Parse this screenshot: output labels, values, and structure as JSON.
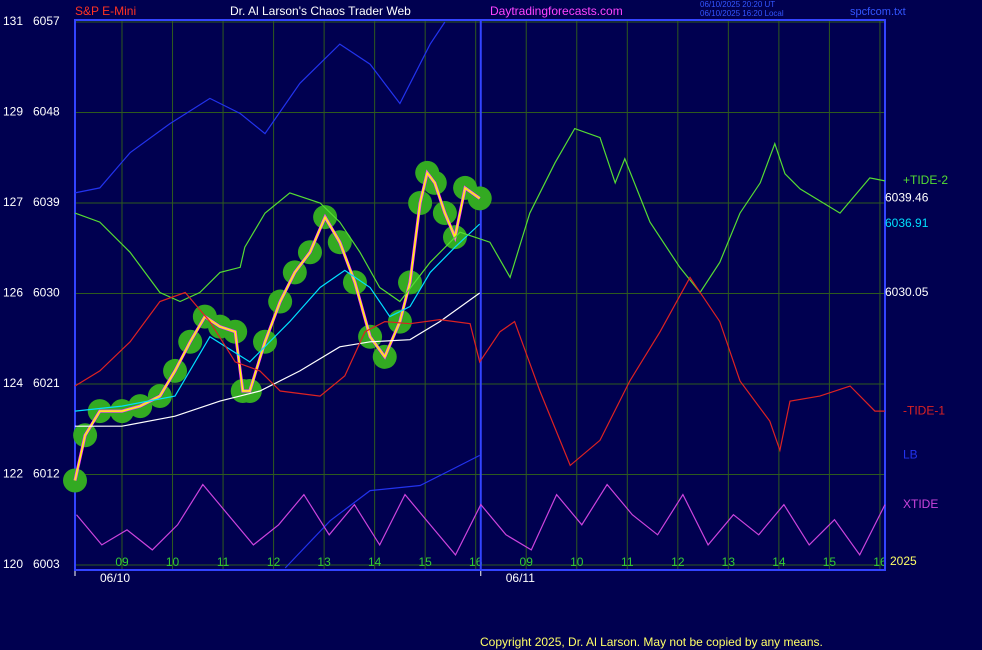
{
  "chart_data": {
    "type": "line",
    "title": "Dr. Al Larson's Chaos Trader Web",
    "instrument": "S&P E-Mini",
    "site": "Daytradingforecasts.com",
    "timestamps": [
      "06/10/2025 20:20 UT",
      "06/10/2025 16:20 Local"
    ],
    "file_name": "spcfcom.txt",
    "year_label": "2025",
    "copyright": "Copyright 2025, Dr. Al Larson. May not be copied by any means.",
    "dates": [
      "06/10",
      "06/11"
    ],
    "session_breaks": [
      7.1
    ],
    "xlim": [
      -0.93,
      15.1
    ],
    "xticks": [
      {
        "value": 0,
        "label": "09"
      },
      {
        "value": 1,
        "label": "10"
      },
      {
        "value": 2,
        "label": "11"
      },
      {
        "value": 3,
        "label": "12"
      },
      {
        "value": 4,
        "label": "13"
      },
      {
        "value": 5,
        "label": "14"
      },
      {
        "value": 6,
        "label": "15"
      },
      {
        "value": 7,
        "label": "16"
      },
      {
        "value": 8,
        "label": "09"
      },
      {
        "value": 9,
        "label": "10"
      },
      {
        "value": 10,
        "label": "11"
      },
      {
        "value": 11,
        "label": "12"
      },
      {
        "value": 12,
        "label": "13"
      },
      {
        "value": 13,
        "label": "14"
      },
      {
        "value": 14,
        "label": "15"
      },
      {
        "value": 15,
        "label": "16"
      }
    ],
    "ylim": [
      6002.5,
      6057.2
    ],
    "yticks": [
      6003,
      6012,
      6021,
      6030,
      6039,
      6048,
      6057
    ],
    "y_secondary_labels": [
      120,
      122,
      124,
      126,
      127,
      129,
      131
    ],
    "grid": true,
    "series": [
      {
        "color": "#ffff00",
        "blobs": true,
        "show_last_value": true,
        "label_color": "#ffffff",
        "x": [
          -0.93,
          -0.73,
          -0.44,
          0,
          0.36,
          0.75,
          1.05,
          1.35,
          1.64,
          1.94,
          2.24,
          2.39,
          2.53,
          2.83,
          3.13,
          3.42,
          3.72,
          4.02,
          4.31,
          4.61,
          4.91,
          5.2,
          5.5,
          5.7,
          5.9,
          6.04,
          6.19,
          6.39,
          6.59,
          6.79,
          7.08
        ],
        "values": [
          6011.4,
          6015.9,
          6018.3,
          6018.3,
          6018.8,
          6019.8,
          6022.3,
          6025.2,
          6027.7,
          6026.7,
          6026.2,
          6020.3,
          6020.3,
          6025.2,
          6029.2,
          6032.1,
          6034.1,
          6037.6,
          6035.1,
          6031.1,
          6025.7,
          6023.7,
          6027.2,
          6031.1,
          6039.0,
          6042.0,
          6041.0,
          6038.0,
          6035.6,
          6040.5,
          6039.46
        ]
      },
      {
        "color": "#00e0ff",
        "show_last_value": true,
        "label_color": "#00e0ff",
        "x": [
          -0.93,
          0,
          1.05,
          1.74,
          2.53,
          3.32,
          3.92,
          4.41,
          4.91,
          5.3,
          5.7,
          6.1,
          6.59,
          7.08
        ],
        "values": [
          6018.3,
          6018.8,
          6019.8,
          6025.7,
          6023.2,
          6027.2,
          6030.6,
          6032.3,
          6030.6,
          6027.7,
          6028.7,
          6032.1,
          6034.6,
          6036.91
        ]
      },
      {
        "color": "#ffffff",
        "show_last_value": true,
        "label_color": "#ffffff",
        "x": [
          -0.93,
          0,
          1.05,
          1.94,
          2.73,
          3.52,
          4.31,
          4.91,
          5.7,
          6.29,
          7.08
        ],
        "values": [
          6016.8,
          6016.8,
          6017.8,
          6019.3,
          6020.3,
          6022.3,
          6024.7,
          6025.2,
          6025.4,
          6027.2,
          6030.05
        ]
      },
      {
        "name": "+TIDE-2",
        "color": "#55dd33",
        "x": [
          -0.93,
          -0.44,
          0.16,
          0.75,
          1.15,
          1.54,
          1.94,
          2.34,
          2.43,
          2.83,
          3.32,
          3.92,
          4.31,
          4.71,
          5.1,
          5.5,
          6.1,
          6.69,
          7.28,
          7.68,
          8.07,
          8.57,
          8.96,
          9.46,
          9.76,
          9.95,
          10.45,
          11.04,
          11.44,
          11.83,
          12.23,
          12.63,
          12.92,
          13.12,
          13.42,
          14.21,
          14.8,
          15.1
        ],
        "values": [
          6038.0,
          6037.1,
          6034.1,
          6030.1,
          6029.2,
          6030.1,
          6032.1,
          6032.6,
          6034.6,
          6038.0,
          6040.0,
          6039.0,
          6037.1,
          6034.1,
          6030.6,
          6029.2,
          6033.1,
          6036.1,
          6035.1,
          6031.6,
          6038.0,
          6043.0,
          6046.4,
          6045.5,
          6041.0,
          6043.4,
          6037.1,
          6032.6,
          6030.1,
          6033.1,
          6038.0,
          6041.0,
          6044.9,
          6041.9,
          6040.4,
          6038.0,
          6041.5,
          6041.2
        ]
      },
      {
        "name": "-TIDE-1",
        "color": "#dd2222",
        "x": [
          -0.93,
          -0.44,
          0.16,
          0.75,
          1.25,
          1.74,
          2.24,
          2.73,
          3.13,
          3.92,
          4.41,
          4.81,
          5.2,
          5.7,
          6.29,
          6.89,
          7.08,
          7.48,
          7.77,
          8.27,
          8.87,
          9.46,
          10.05,
          10.65,
          11.24,
          11.83,
          12.23,
          12.82,
          13.02,
          13.22,
          13.81,
          14.41,
          14.9,
          15.1
        ],
        "values": [
          6020.8,
          6022.3,
          6025.2,
          6029.2,
          6030.1,
          6027.2,
          6023.2,
          6022.3,
          6020.3,
          6019.8,
          6021.8,
          6026.2,
          6027.2,
          6027.0,
          6027.4,
          6027.0,
          6023.2,
          6026.2,
          6027.2,
          6020.3,
          6012.9,
          6015.4,
          6021.3,
          6026.2,
          6031.6,
          6027.2,
          6021.3,
          6017.3,
          6014.4,
          6019.3,
          6019.8,
          6020.8,
          6018.3,
          6018.3
        ]
      },
      {
        "color": "#2233ee",
        "x": [
          -0.93,
          -0.44,
          0.16,
          0.95,
          1.74,
          2.34,
          2.83,
          3.52,
          4.31,
          4.91,
          5.5,
          6.1,
          6.39
        ],
        "values": [
          6040.0,
          6040.5,
          6044.0,
          6046.9,
          6049.4,
          6047.9,
          6045.9,
          6050.9,
          6054.8,
          6052.8,
          6048.9,
          6054.8,
          6057.0
        ]
      },
      {
        "name": "LB",
        "color": "#2233ee",
        "x": [
          3.23,
          4.12,
          4.91,
          5.9,
          6.49,
          7.08
        ],
        "values": [
          6002.7,
          6007.4,
          6010.4,
          6010.9,
          6012.4,
          6013.9
        ]
      },
      {
        "name": "XTIDE",
        "color": "#cc44dd",
        "x": [
          -0.9,
          -0.4,
          0.1,
          0.6,
          1.1,
          1.6,
          2.1,
          2.6,
          3.1,
          3.6,
          4.1,
          4.6,
          5.1,
          5.6,
          6.1,
          6.6,
          7.1,
          7.6,
          8.1,
          8.6,
          9.1,
          9.6,
          10.1,
          10.6,
          11.1,
          11.6,
          12.1,
          12.6,
          13.1,
          13.6,
          14.1,
          14.6,
          15.1
        ],
        "values": [
          6008,
          6005,
          6006.5,
          6004.5,
          6007,
          6011,
          6008,
          6005,
          6007,
          6010,
          6006,
          6009,
          6005,
          6010,
          6007,
          6004,
          6009,
          6006,
          6004.5,
          6010,
          6007,
          6011,
          6008,
          6006,
          6010,
          6005,
          6008,
          6006,
          6009,
          6005,
          6007.5,
          6004,
          6009
        ]
      }
    ]
  }
}
